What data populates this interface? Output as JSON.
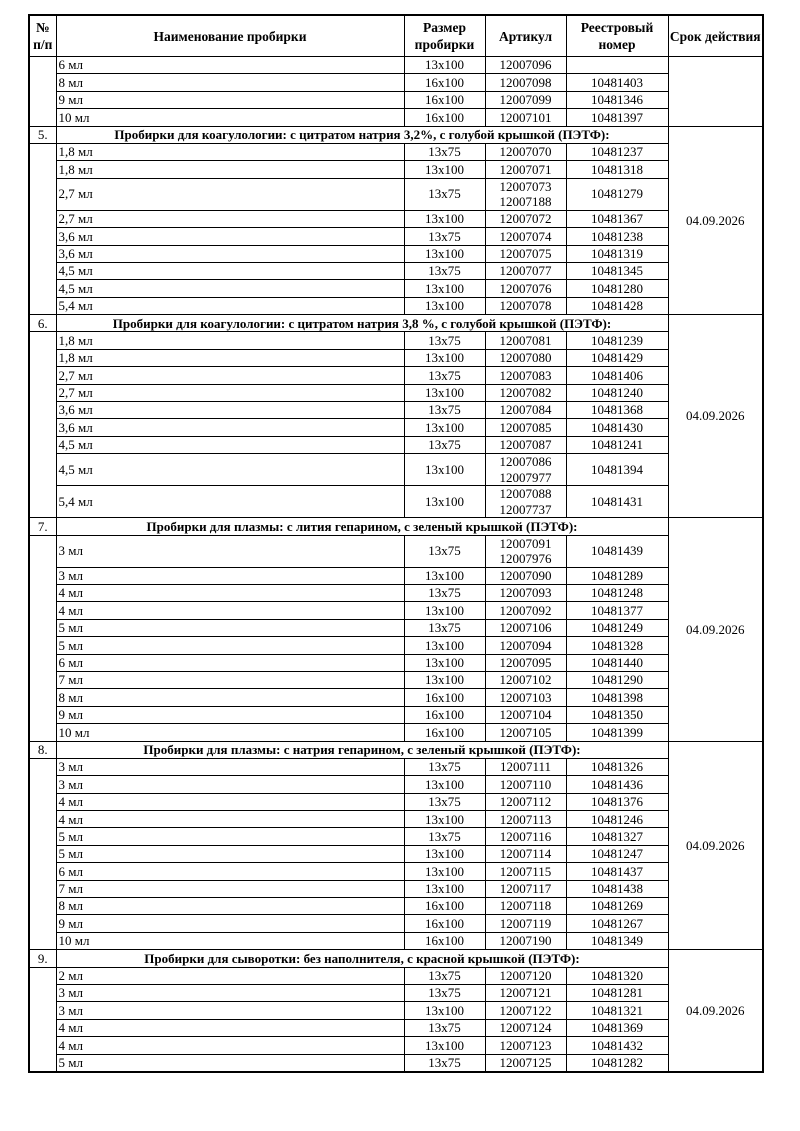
{
  "colors": {
    "background": "#ffffff",
    "text": "#000000",
    "border": "#000000"
  },
  "table": {
    "columns": [
      "№ п/п",
      "Наименование пробирки",
      "Размер пробирки",
      "Артикул",
      "Реестровый номер",
      "Срок действия"
    ],
    "groups": [
      {
        "num": "",
        "title": null,
        "validity": "",
        "rows": [
          {
            "name": "6 мл",
            "size": "13x100",
            "articles": [
              "12007096"
            ],
            "reg": ""
          },
          {
            "name": "8 мл",
            "size": "16x100",
            "articles": [
              "12007098"
            ],
            "reg": "10481403"
          },
          {
            "name": "9 мл",
            "size": "16x100",
            "articles": [
              "12007099"
            ],
            "reg": "10481346"
          },
          {
            "name": "10 мл",
            "size": "16x100",
            "articles": [
              "12007101"
            ],
            "reg": "10481397"
          }
        ]
      },
      {
        "num": "5.",
        "title": "Пробирки для коагулологии: с цитратом натрия 3,2%, с голубой крышкой (ПЭТФ):",
        "validity": "04.09.2026",
        "rows": [
          {
            "name": "1,8 мл",
            "size": "13x75",
            "articles": [
              "12007070"
            ],
            "reg": "10481237"
          },
          {
            "name": "1,8 мл",
            "size": "13x100",
            "articles": [
              "12007071"
            ],
            "reg": "10481318"
          },
          {
            "name": "2,7 мл",
            "size": "13x75",
            "articles": [
              "12007073",
              "12007188"
            ],
            "reg": "10481279"
          },
          {
            "name": "2,7 мл",
            "size": "13x100",
            "articles": [
              "12007072"
            ],
            "reg": "10481367"
          },
          {
            "name": "3,6 мл",
            "size": "13x75",
            "articles": [
              "12007074"
            ],
            "reg": "10481238"
          },
          {
            "name": "3,6 мл",
            "size": "13x100",
            "articles": [
              "12007075"
            ],
            "reg": "10481319"
          },
          {
            "name": "4,5 мл",
            "size": "13x75",
            "articles": [
              "12007077"
            ],
            "reg": "10481345"
          },
          {
            "name": "4,5 мл",
            "size": "13x100",
            "articles": [
              "12007076"
            ],
            "reg": "10481280"
          },
          {
            "name": "5,4 мл",
            "size": "13x100",
            "articles": [
              "12007078"
            ],
            "reg": "10481428"
          }
        ]
      },
      {
        "num": "6.",
        "title": "Пробирки для коагулологии: с цитратом натрия 3,8 %, с голубой крышкой (ПЭТФ):",
        "validity": "04.09.2026",
        "rows": [
          {
            "name": "1,8 мл",
            "size": "13x75",
            "articles": [
              "12007081"
            ],
            "reg": "10481239"
          },
          {
            "name": "1,8 мл",
            "size": "13x100",
            "articles": [
              "12007080"
            ],
            "reg": "10481429"
          },
          {
            "name": "2,7 мл",
            "size": "13x75",
            "articles": [
              "12007083"
            ],
            "reg": "10481406"
          },
          {
            "name": "2,7 мл",
            "size": "13x100",
            "articles": [
              "12007082"
            ],
            "reg": "10481240"
          },
          {
            "name": "3,6 мл",
            "size": "13x75",
            "articles": [
              "12007084"
            ],
            "reg": "10481368"
          },
          {
            "name": "3,6 мл",
            "size": "13x100",
            "articles": [
              "12007085"
            ],
            "reg": "10481430"
          },
          {
            "name": "4,5 мл",
            "size": "13x75",
            "articles": [
              "12007087"
            ],
            "reg": "10481241"
          },
          {
            "name": "4,5 мл",
            "size": "13x100",
            "articles": [
              "12007086",
              "12007977"
            ],
            "reg": "10481394"
          },
          {
            "name": "5,4 мл",
            "size": "13x100",
            "articles": [
              "12007088",
              "12007737"
            ],
            "reg": "10481431"
          }
        ]
      },
      {
        "num": "7.",
        "title": "Пробирки для плазмы: с лития гепарином, с зеленый крышкой (ПЭТФ):",
        "validity": "04.09.2026",
        "rows": [
          {
            "name": "3 мл",
            "size": "13x75",
            "articles": [
              "12007091",
              "12007976"
            ],
            "reg": "10481439"
          },
          {
            "name": "3 мл",
            "size": "13x100",
            "articles": [
              "12007090"
            ],
            "reg": "10481289"
          },
          {
            "name": "4 мл",
            "size": "13x75",
            "articles": [
              "12007093"
            ],
            "reg": "10481248"
          },
          {
            "name": "4 мл",
            "size": "13x100",
            "articles": [
              "12007092"
            ],
            "reg": "10481377"
          },
          {
            "name": "5 мл",
            "size": "13x75",
            "articles": [
              "12007106"
            ],
            "reg": "10481249"
          },
          {
            "name": "5 мл",
            "size": "13x100",
            "articles": [
              "12007094"
            ],
            "reg": "10481328"
          },
          {
            "name": "6 мл",
            "size": "13x100",
            "articles": [
              "12007095"
            ],
            "reg": "10481440"
          },
          {
            "name": "7 мл",
            "size": "13x100",
            "articles": [
              "12007102"
            ],
            "reg": "10481290"
          },
          {
            "name": "8 мл",
            "size": "16x100",
            "articles": [
              "12007103"
            ],
            "reg": "10481398"
          },
          {
            "name": "9 мл",
            "size": "16x100",
            "articles": [
              "12007104"
            ],
            "reg": "10481350"
          },
          {
            "name": "10 мл",
            "size": "16x100",
            "articles": [
              "12007105"
            ],
            "reg": "10481399"
          }
        ]
      },
      {
        "num": "8.",
        "title": "Пробирки для плазмы: с натрия гепарином, с зеленый крышкой (ПЭТФ):",
        "validity": "04.09.2026",
        "rows": [
          {
            "name": "3 мл",
            "size": "13x75",
            "articles": [
              "12007111"
            ],
            "reg": "10481326"
          },
          {
            "name": "3 мл",
            "size": "13x100",
            "articles": [
              "12007110"
            ],
            "reg": "10481436"
          },
          {
            "name": "4 мл",
            "size": "13x75",
            "articles": [
              "12007112"
            ],
            "reg": "10481376"
          },
          {
            "name": "4 мл",
            "size": "13x100",
            "articles": [
              "12007113"
            ],
            "reg": "10481246"
          },
          {
            "name": "5 мл",
            "size": "13x75",
            "articles": [
              "12007116"
            ],
            "reg": "10481327"
          },
          {
            "name": "5 мл",
            "size": "13x100",
            "articles": [
              "12007114"
            ],
            "reg": "10481247"
          },
          {
            "name": "6 мл",
            "size": "13x100",
            "articles": [
              "12007115"
            ],
            "reg": "10481437"
          },
          {
            "name": "7 мл",
            "size": "13x100",
            "articles": [
              "12007117"
            ],
            "reg": "10481438"
          },
          {
            "name": "8 мл",
            "size": "16x100",
            "articles": [
              "12007118"
            ],
            "reg": "10481269"
          },
          {
            "name": "9 мл",
            "size": "16x100",
            "articles": [
              "12007119"
            ],
            "reg": "10481267"
          },
          {
            "name": "10 мл",
            "size": "16x100",
            "articles": [
              "12007190"
            ],
            "reg": "10481349"
          }
        ]
      },
      {
        "num": "9.",
        "title": "Пробирки для сыворотки: без наполнителя, с красной крышкой (ПЭТФ):",
        "validity": "04.09.2026",
        "rows": [
          {
            "name": "2 мл",
            "size": "13x75",
            "articles": [
              "12007120"
            ],
            "reg": "10481320"
          },
          {
            "name": "3 мл",
            "size": "13x75",
            "articles": [
              "12007121"
            ],
            "reg": "10481281"
          },
          {
            "name": "3 мл",
            "size": "13x100",
            "articles": [
              "12007122"
            ],
            "reg": "10481321"
          },
          {
            "name": "4 мл",
            "size": "13x75",
            "articles": [
              "12007124"
            ],
            "reg": "10481369"
          },
          {
            "name": "4 мл",
            "size": "13x100",
            "articles": [
              "12007123"
            ],
            "reg": "10481432"
          },
          {
            "name": "5 мл",
            "size": "13x75",
            "articles": [
              "12007125"
            ],
            "reg": "10481282"
          }
        ]
      }
    ]
  }
}
